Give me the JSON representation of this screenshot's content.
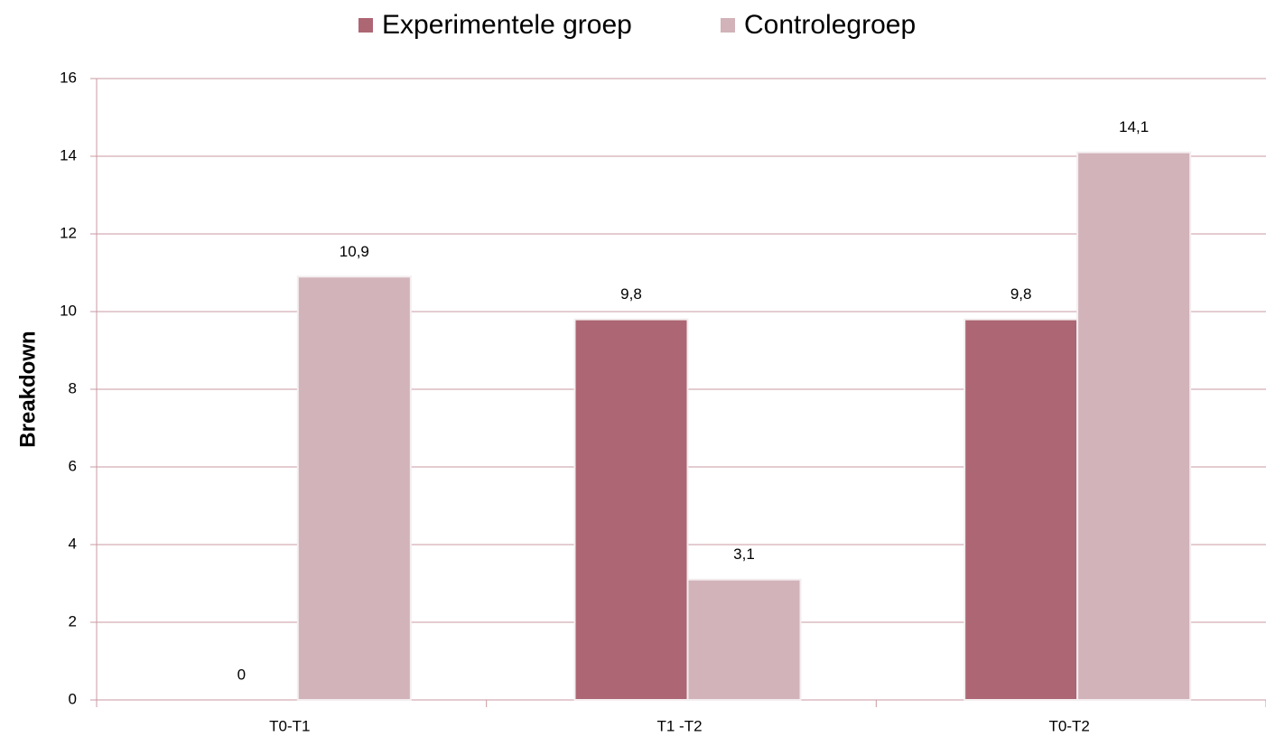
{
  "chart_data": {
    "type": "bar",
    "categories": [
      "T0-T1",
      "T1 -T2",
      "T0-T2"
    ],
    "series": [
      {
        "name": "Experimentele groep",
        "color": "#ad6673",
        "values": [
          0,
          9.8,
          9.8
        ],
        "value_labels": [
          "0",
          "9,8",
          "9,8"
        ]
      },
      {
        "name": "Controlegroep",
        "color": "#d1b3b9",
        "values": [
          10.9,
          3.1,
          14.1
        ],
        "value_labels": [
          "10,9",
          "3,1",
          "14,1"
        ]
      }
    ],
    "ylabel": "Breakdown",
    "ylim": [
      0,
      16
    ],
    "yticks": [
      0,
      2,
      4,
      6,
      8,
      10,
      12,
      14,
      16
    ],
    "grid": true,
    "legend": "top"
  }
}
